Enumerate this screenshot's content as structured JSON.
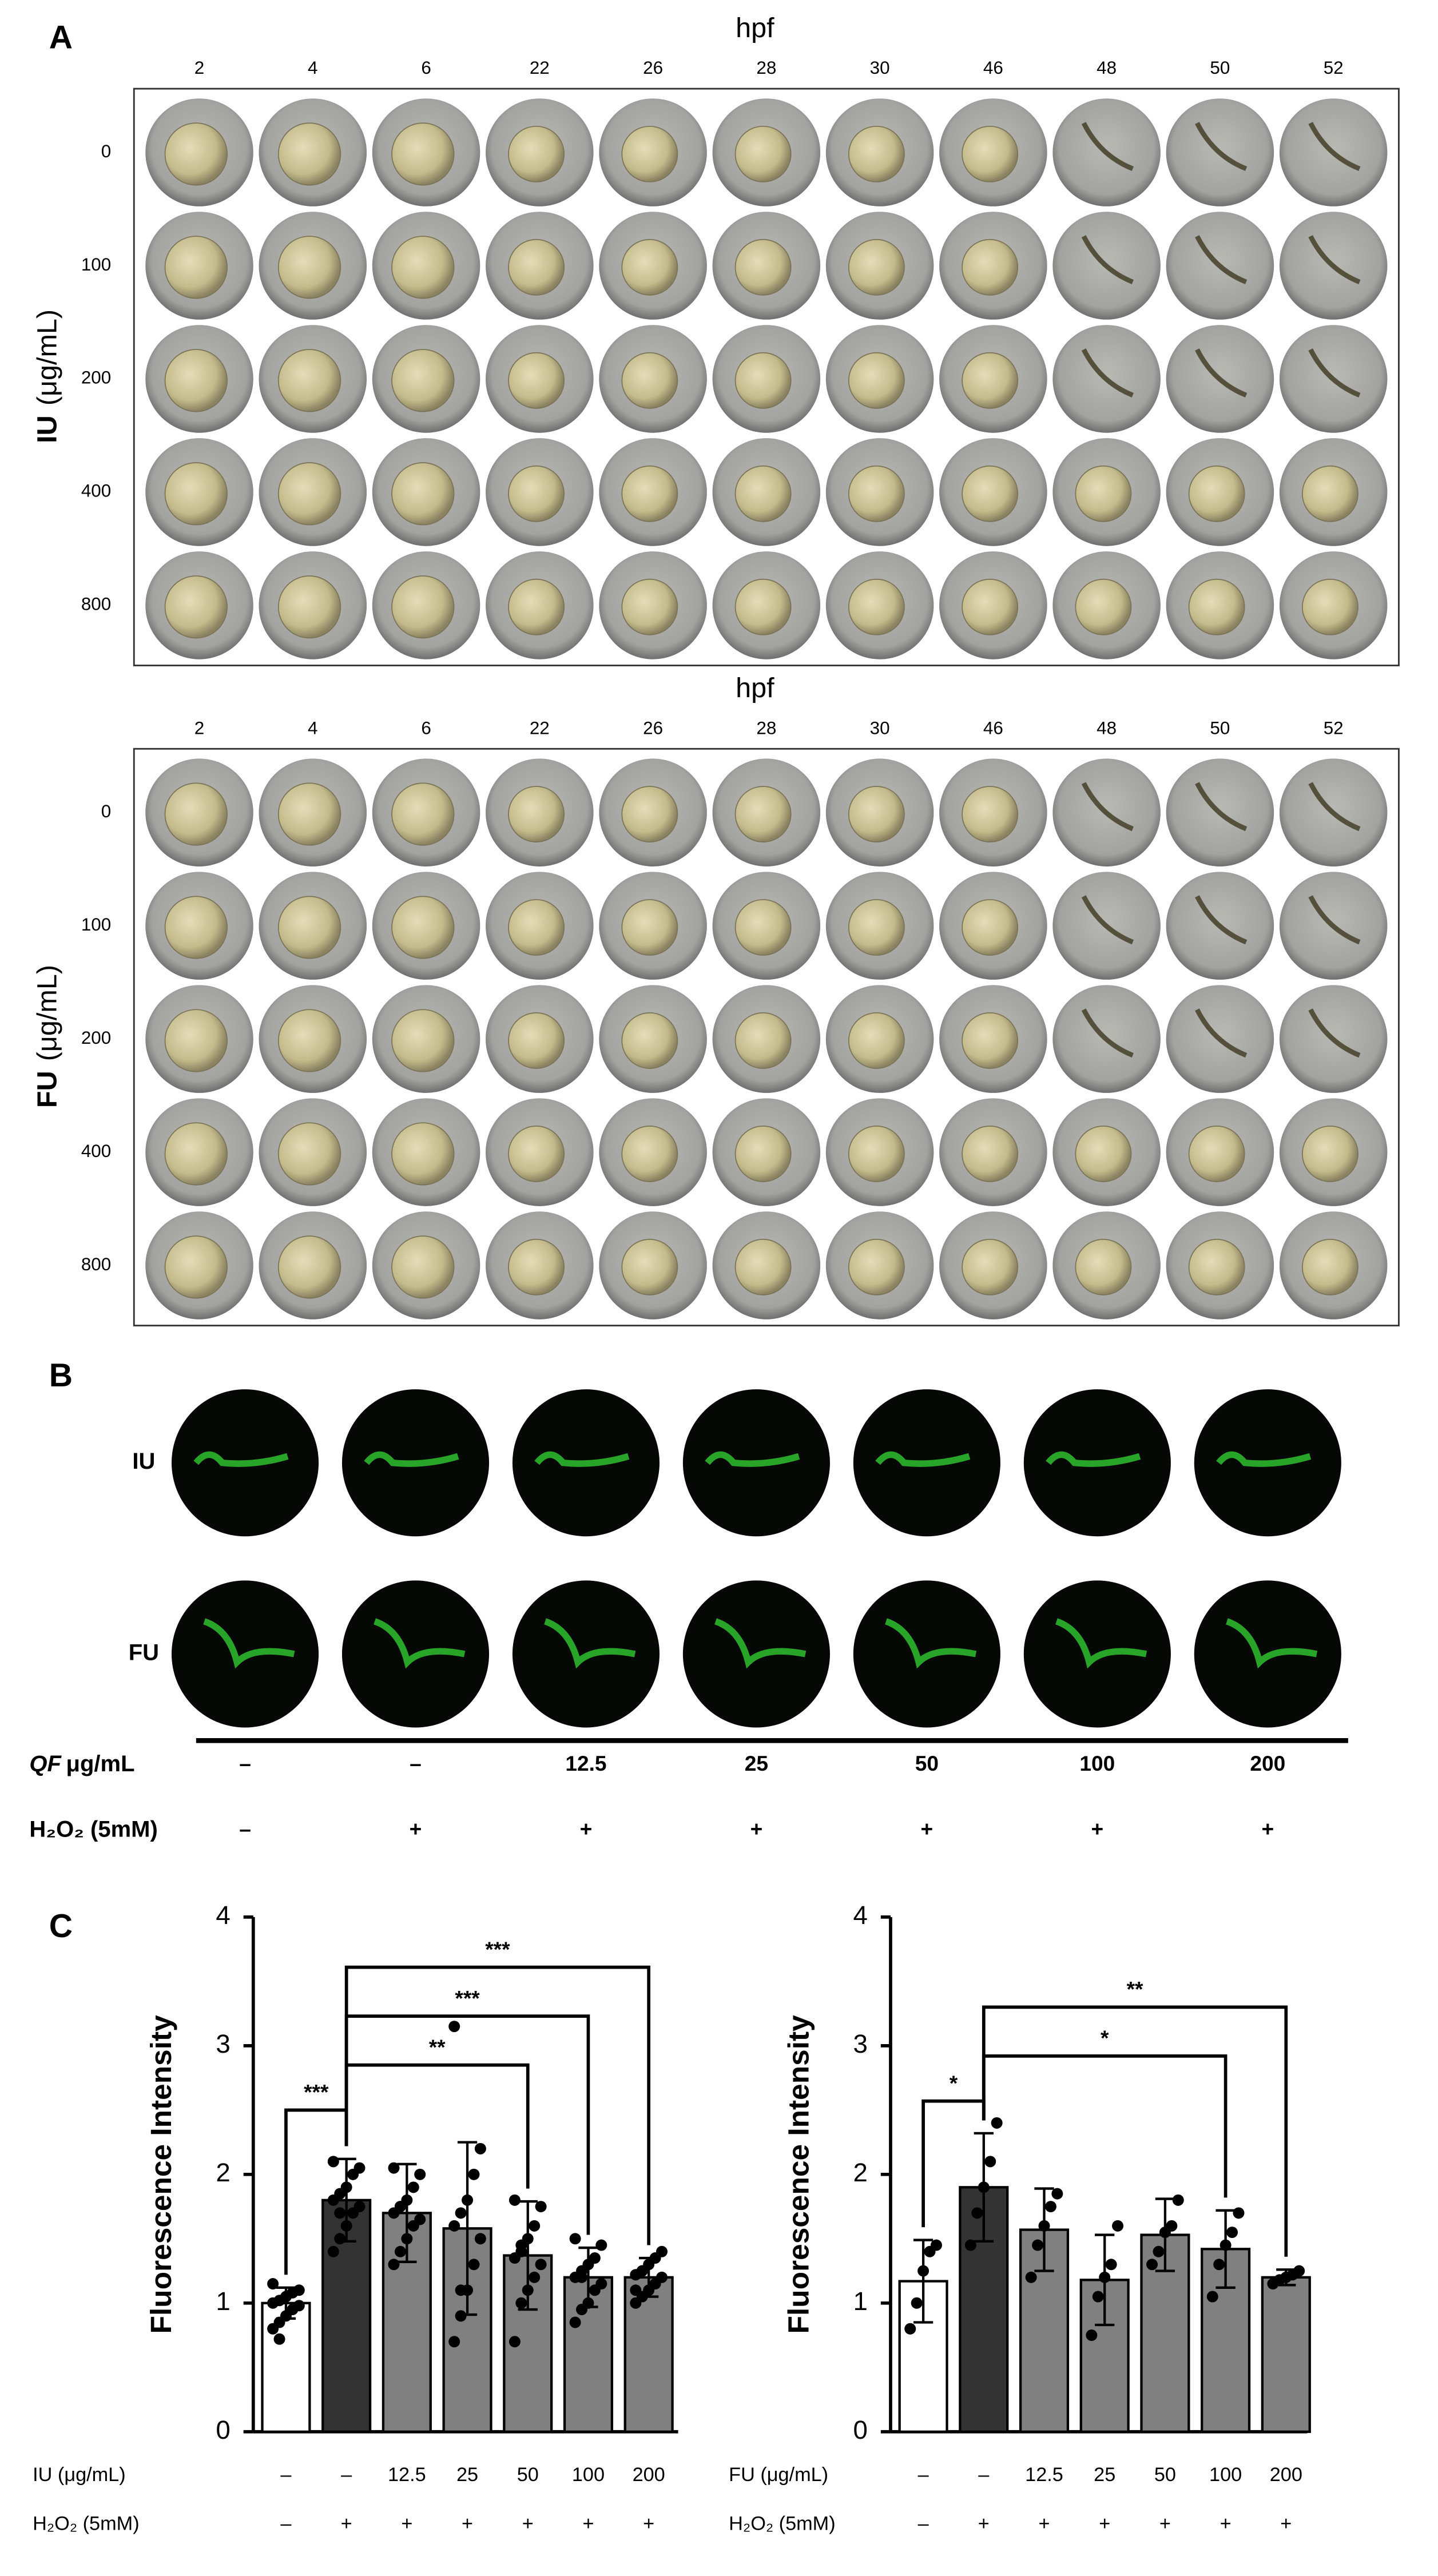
{
  "panel_a": {
    "label": "A",
    "grids": [
      {
        "x_title": "hpf",
        "columns": [
          "2",
          "4",
          "6",
          "22",
          "26",
          "28",
          "30",
          "46",
          "48",
          "50",
          "52"
        ],
        "y_title": "IU",
        "y_unit": "(μg/mL)",
        "rows": [
          "0",
          "100",
          "200",
          "400",
          "800"
        ]
      },
      {
        "x_title": "hpf",
        "columns": [
          "2",
          "4",
          "6",
          "22",
          "26",
          "28",
          "30",
          "46",
          "48",
          "50",
          "52"
        ],
        "y_title": "FU",
        "y_unit": "(μg/mL)",
        "rows": [
          "0",
          "100",
          "200",
          "400",
          "800"
        ]
      }
    ]
  },
  "panel_b": {
    "label": "B",
    "rows": [
      "IU",
      "FU"
    ],
    "treatments": [
      {
        "label_italic": "QF",
        "label": "μg/mL",
        "values": [
          "–",
          "–",
          "12.5",
          "25",
          "50",
          "100",
          "200"
        ]
      },
      {
        "label": "H₂O₂ (5mM)",
        "values": [
          "–",
          "+",
          "+",
          "+",
          "+",
          "+",
          "+"
        ]
      }
    ]
  },
  "panel_c": {
    "label": "C"
  },
  "chart_data": [
    {
      "type": "bar",
      "y_label": "Fluorescence Intensity",
      "category_label": "IU (μg/mL)",
      "categories": [
        "–",
        "–",
        "12.5",
        "25",
        "50",
        "100",
        "200"
      ],
      "treatment": {
        "label": "H₂O₂ (5mM)",
        "values": [
          "–",
          "+",
          "+",
          "+",
          "+",
          "+",
          "+"
        ]
      },
      "ylim": [
        0,
        4
      ],
      "yticks": [
        0,
        1,
        2,
        3,
        4
      ],
      "colors": [
        "#ffffff",
        "#333333",
        "#808080",
        "#808080",
        "#808080",
        "#808080",
        "#808080"
      ],
      "values": [
        1.0,
        1.8,
        1.7,
        1.58,
        1.37,
        1.2,
        1.2
      ],
      "errors": [
        0.12,
        0.32,
        0.38,
        0.67,
        0.42,
        0.23,
        0.15
      ],
      "points": [
        [
          0.8,
          0.85,
          0.9,
          0.95,
          0.98,
          1.0,
          1.02,
          1.05,
          1.08,
          1.1,
          1.15,
          0.72
        ],
        [
          1.4,
          1.5,
          1.6,
          1.7,
          1.75,
          1.8,
          1.85,
          1.9,
          2.0,
          2.05,
          2.1,
          1.7
        ],
        [
          1.3,
          1.4,
          1.5,
          1.6,
          1.65,
          1.7,
          1.75,
          1.8,
          1.9,
          2.0,
          2.05,
          1.75
        ],
        [
          0.7,
          0.9,
          1.1,
          1.3,
          1.5,
          1.6,
          1.7,
          1.8,
          2.0,
          2.2,
          3.15,
          1.1
        ],
        [
          0.7,
          1.0,
          1.1,
          1.2,
          1.3,
          1.35,
          1.4,
          1.5,
          1.6,
          1.75,
          1.8,
          1.45
        ],
        [
          0.85,
          0.95,
          1.0,
          1.1,
          1.15,
          1.2,
          1.25,
          1.3,
          1.35,
          1.45,
          1.5,
          1.2
        ],
        [
          1.0,
          1.05,
          1.1,
          1.15,
          1.2,
          1.22,
          1.25,
          1.3,
          1.35,
          1.4,
          1.1,
          1.25
        ]
      ],
      "significance": [
        {
          "from": 0,
          "to": 1,
          "label": "***"
        },
        {
          "from": 1,
          "to": 4,
          "label": "**"
        },
        {
          "from": 1,
          "to": 5,
          "label": "***"
        },
        {
          "from": 1,
          "to": 6,
          "label": "***"
        }
      ]
    },
    {
      "type": "bar",
      "y_label": "Fluorescence Intensity",
      "category_label": "FU (μg/mL)",
      "categories": [
        "–",
        "–",
        "12.5",
        "25",
        "50",
        "100",
        "200"
      ],
      "treatment": {
        "label": "H₂O₂ (5mM)",
        "values": [
          "–",
          "+",
          "+",
          "+",
          "+",
          "+",
          "+"
        ]
      },
      "ylim": [
        0,
        4
      ],
      "yticks": [
        0,
        1,
        2,
        3,
        4
      ],
      "colors": [
        "#ffffff",
        "#333333",
        "#808080",
        "#808080",
        "#808080",
        "#808080",
        "#808080"
      ],
      "values": [
        1.17,
        1.9,
        1.57,
        1.18,
        1.53,
        1.42,
        1.2
      ],
      "errors": [
        0.32,
        0.42,
        0.32,
        0.35,
        0.28,
        0.3,
        0.06
      ],
      "points": [
        [
          0.8,
          1.0,
          1.25,
          1.4,
          1.45
        ],
        [
          1.45,
          1.7,
          1.9,
          2.1,
          2.4
        ],
        [
          1.2,
          1.45,
          1.6,
          1.75,
          1.85
        ],
        [
          0.75,
          1.05,
          1.2,
          1.3,
          1.6
        ],
        [
          1.3,
          1.4,
          1.55,
          1.6,
          1.8
        ],
        [
          1.05,
          1.3,
          1.45,
          1.55,
          1.7
        ],
        [
          1.15,
          1.18,
          1.2,
          1.22,
          1.25
        ]
      ],
      "significance": [
        {
          "from": 0,
          "to": 1,
          "label": "*"
        },
        {
          "from": 1,
          "to": 5,
          "label": "*"
        },
        {
          "from": 1,
          "to": 6,
          "label": "**"
        }
      ]
    }
  ]
}
